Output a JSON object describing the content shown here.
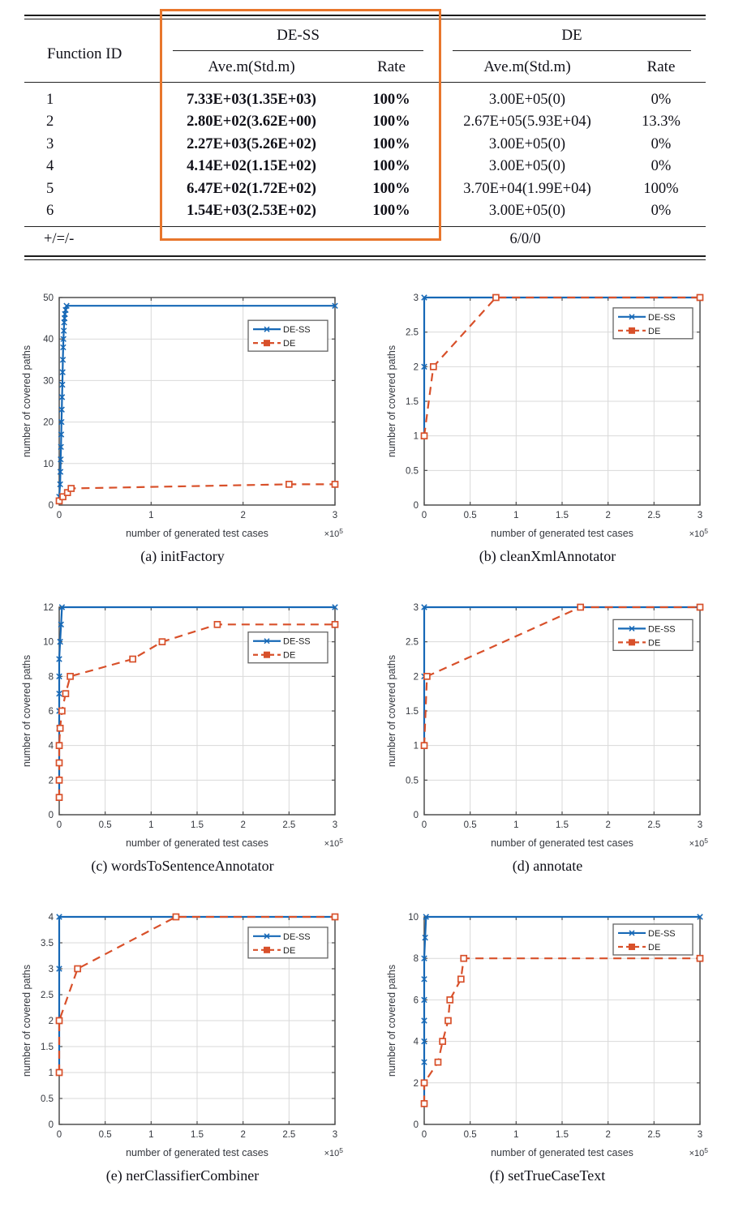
{
  "table": {
    "header": {
      "function_id": "Function ID",
      "group_dess": "DE-SS",
      "group_de": "DE",
      "sub_ave": "Ave.m(Std.m)",
      "sub_rate": "Rate"
    },
    "rows": [
      {
        "id": "1",
        "dess_ave": "7.33E+03(1.35E+03)",
        "dess_rate": "100%",
        "de_ave": "3.00E+05(0)",
        "de_rate": "0%"
      },
      {
        "id": "2",
        "dess_ave": "2.80E+02(3.62E+00)",
        "dess_rate": "100%",
        "de_ave": "2.67E+05(5.93E+04)",
        "de_rate": "13.3%"
      },
      {
        "id": "3",
        "dess_ave": "2.27E+03(5.26E+02)",
        "dess_rate": "100%",
        "de_ave": "3.00E+05(0)",
        "de_rate": "0%"
      },
      {
        "id": "4",
        "dess_ave": "4.14E+02(1.15E+02)",
        "dess_rate": "100%",
        "de_ave": "3.00E+05(0)",
        "de_rate": "0%"
      },
      {
        "id": "5",
        "dess_ave": "6.47E+02(1.72E+02)",
        "dess_rate": "100%",
        "de_ave": "3.70E+04(1.99E+04)",
        "de_rate": "100%"
      },
      {
        "id": "6",
        "dess_ave": "1.54E+03(2.53E+02)",
        "dess_rate": "100%",
        "de_ave": "3.00E+05(0)",
        "de_rate": "0%"
      }
    ],
    "footer_label": "+/=/-",
    "footer_value": "6/0/0",
    "highlight_color": "#e8762c"
  },
  "chart_style": {
    "blue": "#1668b6",
    "red": "#d8502a",
    "grid": "#d9d9d9",
    "axis": "#4f4f4f",
    "text": "#35383f"
  },
  "chart_data": [
    {
      "type": "line",
      "caption": "(a) initFactory",
      "xlabel": "number of generated test cases",
      "ylabel": "number of covered paths",
      "x_unit": "×10^5",
      "xlim": [
        0,
        3
      ],
      "ylim": [
        0,
        50
      ],
      "xticks": [
        0,
        1,
        2,
        3
      ],
      "yticks": [
        0,
        10,
        20,
        30,
        40,
        50
      ],
      "legend_top_frac": 0.11,
      "series": [
        {
          "name": "DE-SS",
          "color_key": "blue",
          "line": "solid",
          "marker": "x",
          "points": [
            [
              0,
              2
            ],
            [
              0.01,
              5
            ],
            [
              0.013,
              8
            ],
            [
              0.016,
              11
            ],
            [
              0.019,
              14
            ],
            [
              0.022,
              17
            ],
            [
              0.025,
              20
            ],
            [
              0.028,
              23
            ],
            [
              0.031,
              26
            ],
            [
              0.034,
              29
            ],
            [
              0.037,
              32
            ],
            [
              0.04,
              35
            ],
            [
              0.043,
              38
            ],
            [
              0.046,
              40
            ],
            [
              0.05,
              42
            ],
            [
              0.054,
              44
            ],
            [
              0.058,
              45
            ],
            [
              0.062,
              46
            ],
            [
              0.07,
              47
            ],
            [
              0.08,
              48
            ],
            [
              3,
              48
            ]
          ]
        },
        {
          "name": "DE",
          "color_key": "red",
          "line": "dashed",
          "marker": "square",
          "points": [
            [
              0,
              1
            ],
            [
              0.04,
              2
            ],
            [
              0.09,
              3
            ],
            [
              0.13,
              4
            ],
            [
              2.5,
              5
            ],
            [
              3,
              5
            ]
          ]
        }
      ]
    },
    {
      "type": "line",
      "caption": "(b) cleanXmlAnnotator",
      "xlabel": "number of generated test cases",
      "ylabel": "number of covered paths",
      "x_unit": "×10^5",
      "xlim": [
        0,
        3
      ],
      "ylim": [
        0,
        3
      ],
      "xticks": [
        0,
        0.5,
        1,
        1.5,
        2,
        2.5,
        3
      ],
      "yticks": [
        0,
        0.5,
        1,
        1.5,
        2,
        2.5,
        3
      ],
      "legend_top_frac": 0.05,
      "series": [
        {
          "name": "DE-SS",
          "color_key": "blue",
          "line": "solid",
          "marker": "x",
          "points": [
            [
              0,
              1
            ],
            [
              0,
              2
            ],
            [
              0,
              3
            ],
            [
              3,
              3
            ]
          ]
        },
        {
          "name": "DE",
          "color_key": "red",
          "line": "dashed",
          "marker": "square",
          "points": [
            [
              0,
              1
            ],
            [
              0.1,
              2
            ],
            [
              0.78,
              3
            ],
            [
              3,
              3
            ]
          ]
        }
      ]
    },
    {
      "type": "line",
      "caption": "(c) wordsToSentenceAnnotator",
      "xlabel": "number of generated test cases",
      "ylabel": "number of covered paths",
      "x_unit": "×10^5",
      "xlim": [
        0,
        3
      ],
      "ylim": [
        0,
        12
      ],
      "xticks": [
        0,
        0.5,
        1,
        1.5,
        2,
        2.5,
        3
      ],
      "yticks": [
        0,
        2,
        4,
        6,
        8,
        10,
        12
      ],
      "legend_top_frac": 0.12,
      "series": [
        {
          "name": "DE-SS",
          "color_key": "blue",
          "line": "solid",
          "marker": "x",
          "points": [
            [
              0,
              1
            ],
            [
              0,
              2
            ],
            [
              0,
              3
            ],
            [
              0,
              4
            ],
            [
              0,
              5
            ],
            [
              0,
              6
            ],
            [
              0,
              7
            ],
            [
              0,
              8
            ],
            [
              0,
              9
            ],
            [
              0.01,
              10
            ],
            [
              0.02,
              11
            ],
            [
              0.03,
              12
            ],
            [
              3,
              12
            ]
          ]
        },
        {
          "name": "DE",
          "color_key": "red",
          "line": "dashed",
          "marker": "square",
          "points": [
            [
              0,
              1
            ],
            [
              0,
              2
            ],
            [
              0,
              3
            ],
            [
              0,
              4
            ],
            [
              0.01,
              5
            ],
            [
              0.03,
              6
            ],
            [
              0.07,
              7
            ],
            [
              0.12,
              8
            ],
            [
              0.8,
              9
            ],
            [
              1.12,
              10
            ],
            [
              1.72,
              11
            ],
            [
              3,
              11
            ]
          ]
        }
      ]
    },
    {
      "type": "line",
      "caption": "(d) annotate",
      "xlabel": "number of generated test cases",
      "ylabel": "number of covered paths",
      "x_unit": "×10^5",
      "xlim": [
        0,
        3
      ],
      "ylim": [
        0,
        3
      ],
      "xticks": [
        0,
        0.5,
        1,
        1.5,
        2,
        2.5,
        3
      ],
      "yticks": [
        0,
        0.5,
        1,
        1.5,
        2,
        2.5,
        3
      ],
      "legend_top_frac": 0.06,
      "series": [
        {
          "name": "DE-SS",
          "color_key": "blue",
          "line": "solid",
          "marker": "x",
          "points": [
            [
              0,
              1
            ],
            [
              0,
              2
            ],
            [
              0,
              3
            ],
            [
              3,
              3
            ]
          ]
        },
        {
          "name": "DE",
          "color_key": "red",
          "line": "dashed",
          "marker": "square",
          "points": [
            [
              0,
              1
            ],
            [
              0.03,
              2
            ],
            [
              1.7,
              3
            ],
            [
              3,
              3
            ]
          ]
        }
      ]
    },
    {
      "type": "line",
      "caption": "(e) nerClassifierCombiner",
      "xlabel": "number of generated test cases",
      "ylabel": "number of covered paths",
      "x_unit": "×10^5",
      "xlim": [
        0,
        3
      ],
      "ylim": [
        0,
        4
      ],
      "xticks": [
        0,
        0.5,
        1,
        1.5,
        2,
        2.5,
        3
      ],
      "yticks": [
        0,
        0.5,
        1,
        1.5,
        2,
        2.5,
        3,
        3.5,
        4
      ],
      "legend_top_frac": 0.05,
      "series": [
        {
          "name": "DE-SS",
          "color_key": "blue",
          "line": "solid",
          "marker": "x",
          "points": [
            [
              0,
              1
            ],
            [
              0,
              2
            ],
            [
              0,
              3
            ],
            [
              0,
              4
            ],
            [
              3,
              4
            ]
          ]
        },
        {
          "name": "DE",
          "color_key": "red",
          "line": "dashed",
          "marker": "square",
          "points": [
            [
              0,
              1
            ],
            [
              0,
              2
            ],
            [
              0.2,
              3
            ],
            [
              1.27,
              4
            ],
            [
              3,
              4
            ]
          ]
        }
      ]
    },
    {
      "type": "line",
      "caption": "(f) setTrueCaseText",
      "xlabel": "number of generated test cases",
      "ylabel": "number of covered paths",
      "x_unit": "×10^5",
      "xlim": [
        0,
        3
      ],
      "ylim": [
        0,
        10
      ],
      "xticks": [
        0,
        0.5,
        1,
        1.5,
        2,
        2.5,
        3
      ],
      "yticks": [
        0,
        2,
        4,
        6,
        8,
        10
      ],
      "legend_top_frac": 0.035,
      "series": [
        {
          "name": "DE-SS",
          "color_key": "blue",
          "line": "solid",
          "marker": "x",
          "points": [
            [
              0,
              1
            ],
            [
              0,
              2
            ],
            [
              0,
              3
            ],
            [
              0,
              4
            ],
            [
              0,
              5
            ],
            [
              0,
              6
            ],
            [
              0,
              7
            ],
            [
              0,
              8
            ],
            [
              0.01,
              9
            ],
            [
              0.02,
              10
            ],
            [
              3,
              10
            ]
          ]
        },
        {
          "name": "DE",
          "color_key": "red",
          "line": "dashed",
          "marker": "square",
          "points": [
            [
              0,
              1
            ],
            [
              0,
              2
            ],
            [
              0.15,
              3
            ],
            [
              0.2,
              4
            ],
            [
              0.26,
              5
            ],
            [
              0.28,
              6
            ],
            [
              0.4,
              7
            ],
            [
              0.43,
              8
            ],
            [
              3,
              8
            ]
          ]
        }
      ]
    }
  ]
}
